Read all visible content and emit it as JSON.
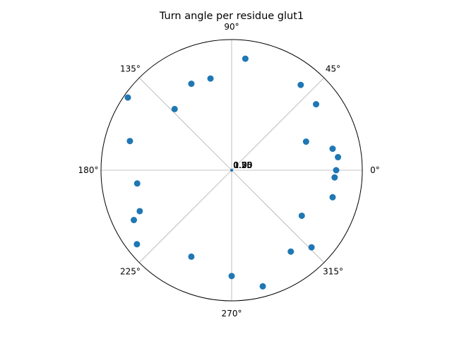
{
  "chart_data": {
    "type": "scatter",
    "projection": "polar",
    "title": "Turn angle per residue glut1",
    "angle_ticks": [
      "0°",
      "45°",
      "90°",
      "135°",
      "180°",
      "225°",
      "270°",
      "315°"
    ],
    "radial_tick_labels": [
      "0.25",
      "0.50",
      "0.75",
      "1.00"
    ],
    "rlim": [
      0,
      1
    ],
    "grid": true,
    "marker_color": "#1f77b4",
    "grid_color": "#b0b0b0",
    "series": [
      {
        "theta_deg": [
          0,
          7,
          12,
          21,
          38,
          51,
          83,
          103,
          115,
          133,
          145,
          164,
          188,
          204,
          207,
          218,
          245,
          270,
          285,
          306,
          316,
          327,
          345,
          356,
          0
        ],
        "r": [
          0.8,
          0.82,
          0.79,
          0.61,
          0.82,
          0.84,
          0.86,
          0.72,
          0.73,
          0.64,
          0.97,
          0.81,
          0.73,
          0.77,
          0.84,
          0.92,
          0.73,
          0.81,
          0.92,
          0.77,
          0.85,
          0.64,
          0.8,
          0.79,
          0.0
        ]
      }
    ]
  }
}
